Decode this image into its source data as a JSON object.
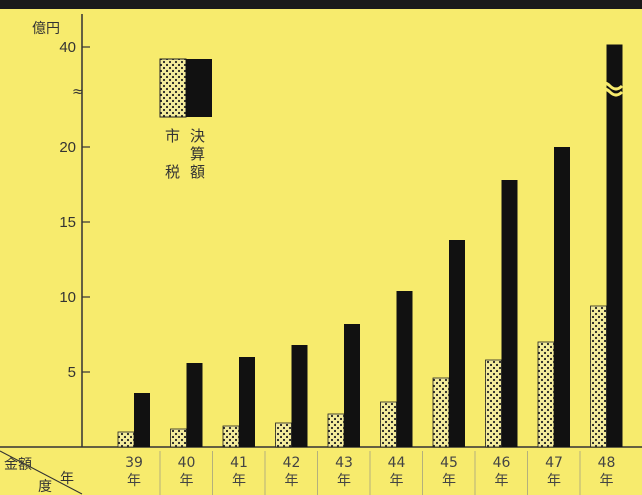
{
  "chart_data": {
    "type": "bar",
    "unit_label": "億円",
    "corner_label_top": "金額",
    "corner_label_bottom": "度",
    "corner_label_right": "年",
    "categories": [
      [
        "39",
        "年"
      ],
      [
        "40",
        "年"
      ],
      [
        "41",
        "年"
      ],
      [
        "42",
        "年"
      ],
      [
        "43",
        "年"
      ],
      [
        "44",
        "年"
      ],
      [
        "45",
        "年"
      ],
      [
        "46",
        "年"
      ],
      [
        "47",
        "年"
      ],
      [
        "48",
        "年"
      ]
    ],
    "y_ticks": [
      "5",
      "10",
      "15",
      "20",
      "40"
    ],
    "axis_break": "≈",
    "series": [
      {
        "name": "市税",
        "legend_chars": [
          "市",
          "税"
        ],
        "pattern": "dotted",
        "values": [
          1.0,
          1.2,
          1.4,
          1.6,
          2.2,
          3.0,
          4.6,
          5.8,
          7.0,
          9.4
        ]
      },
      {
        "name": "決算額",
        "legend_chars": [
          "決",
          "算",
          "額"
        ],
        "pattern": "solid",
        "values": [
          3.6,
          5.6,
          6.0,
          6.8,
          8.2,
          10.4,
          13.8,
          17.8,
          20.0,
          40.5
        ]
      }
    ],
    "colors": {
      "background": "#f7eb6d",
      "bar_solid": "#111111",
      "bar_dots": "#f4ec9c",
      "grid": "#555555"
    }
  }
}
